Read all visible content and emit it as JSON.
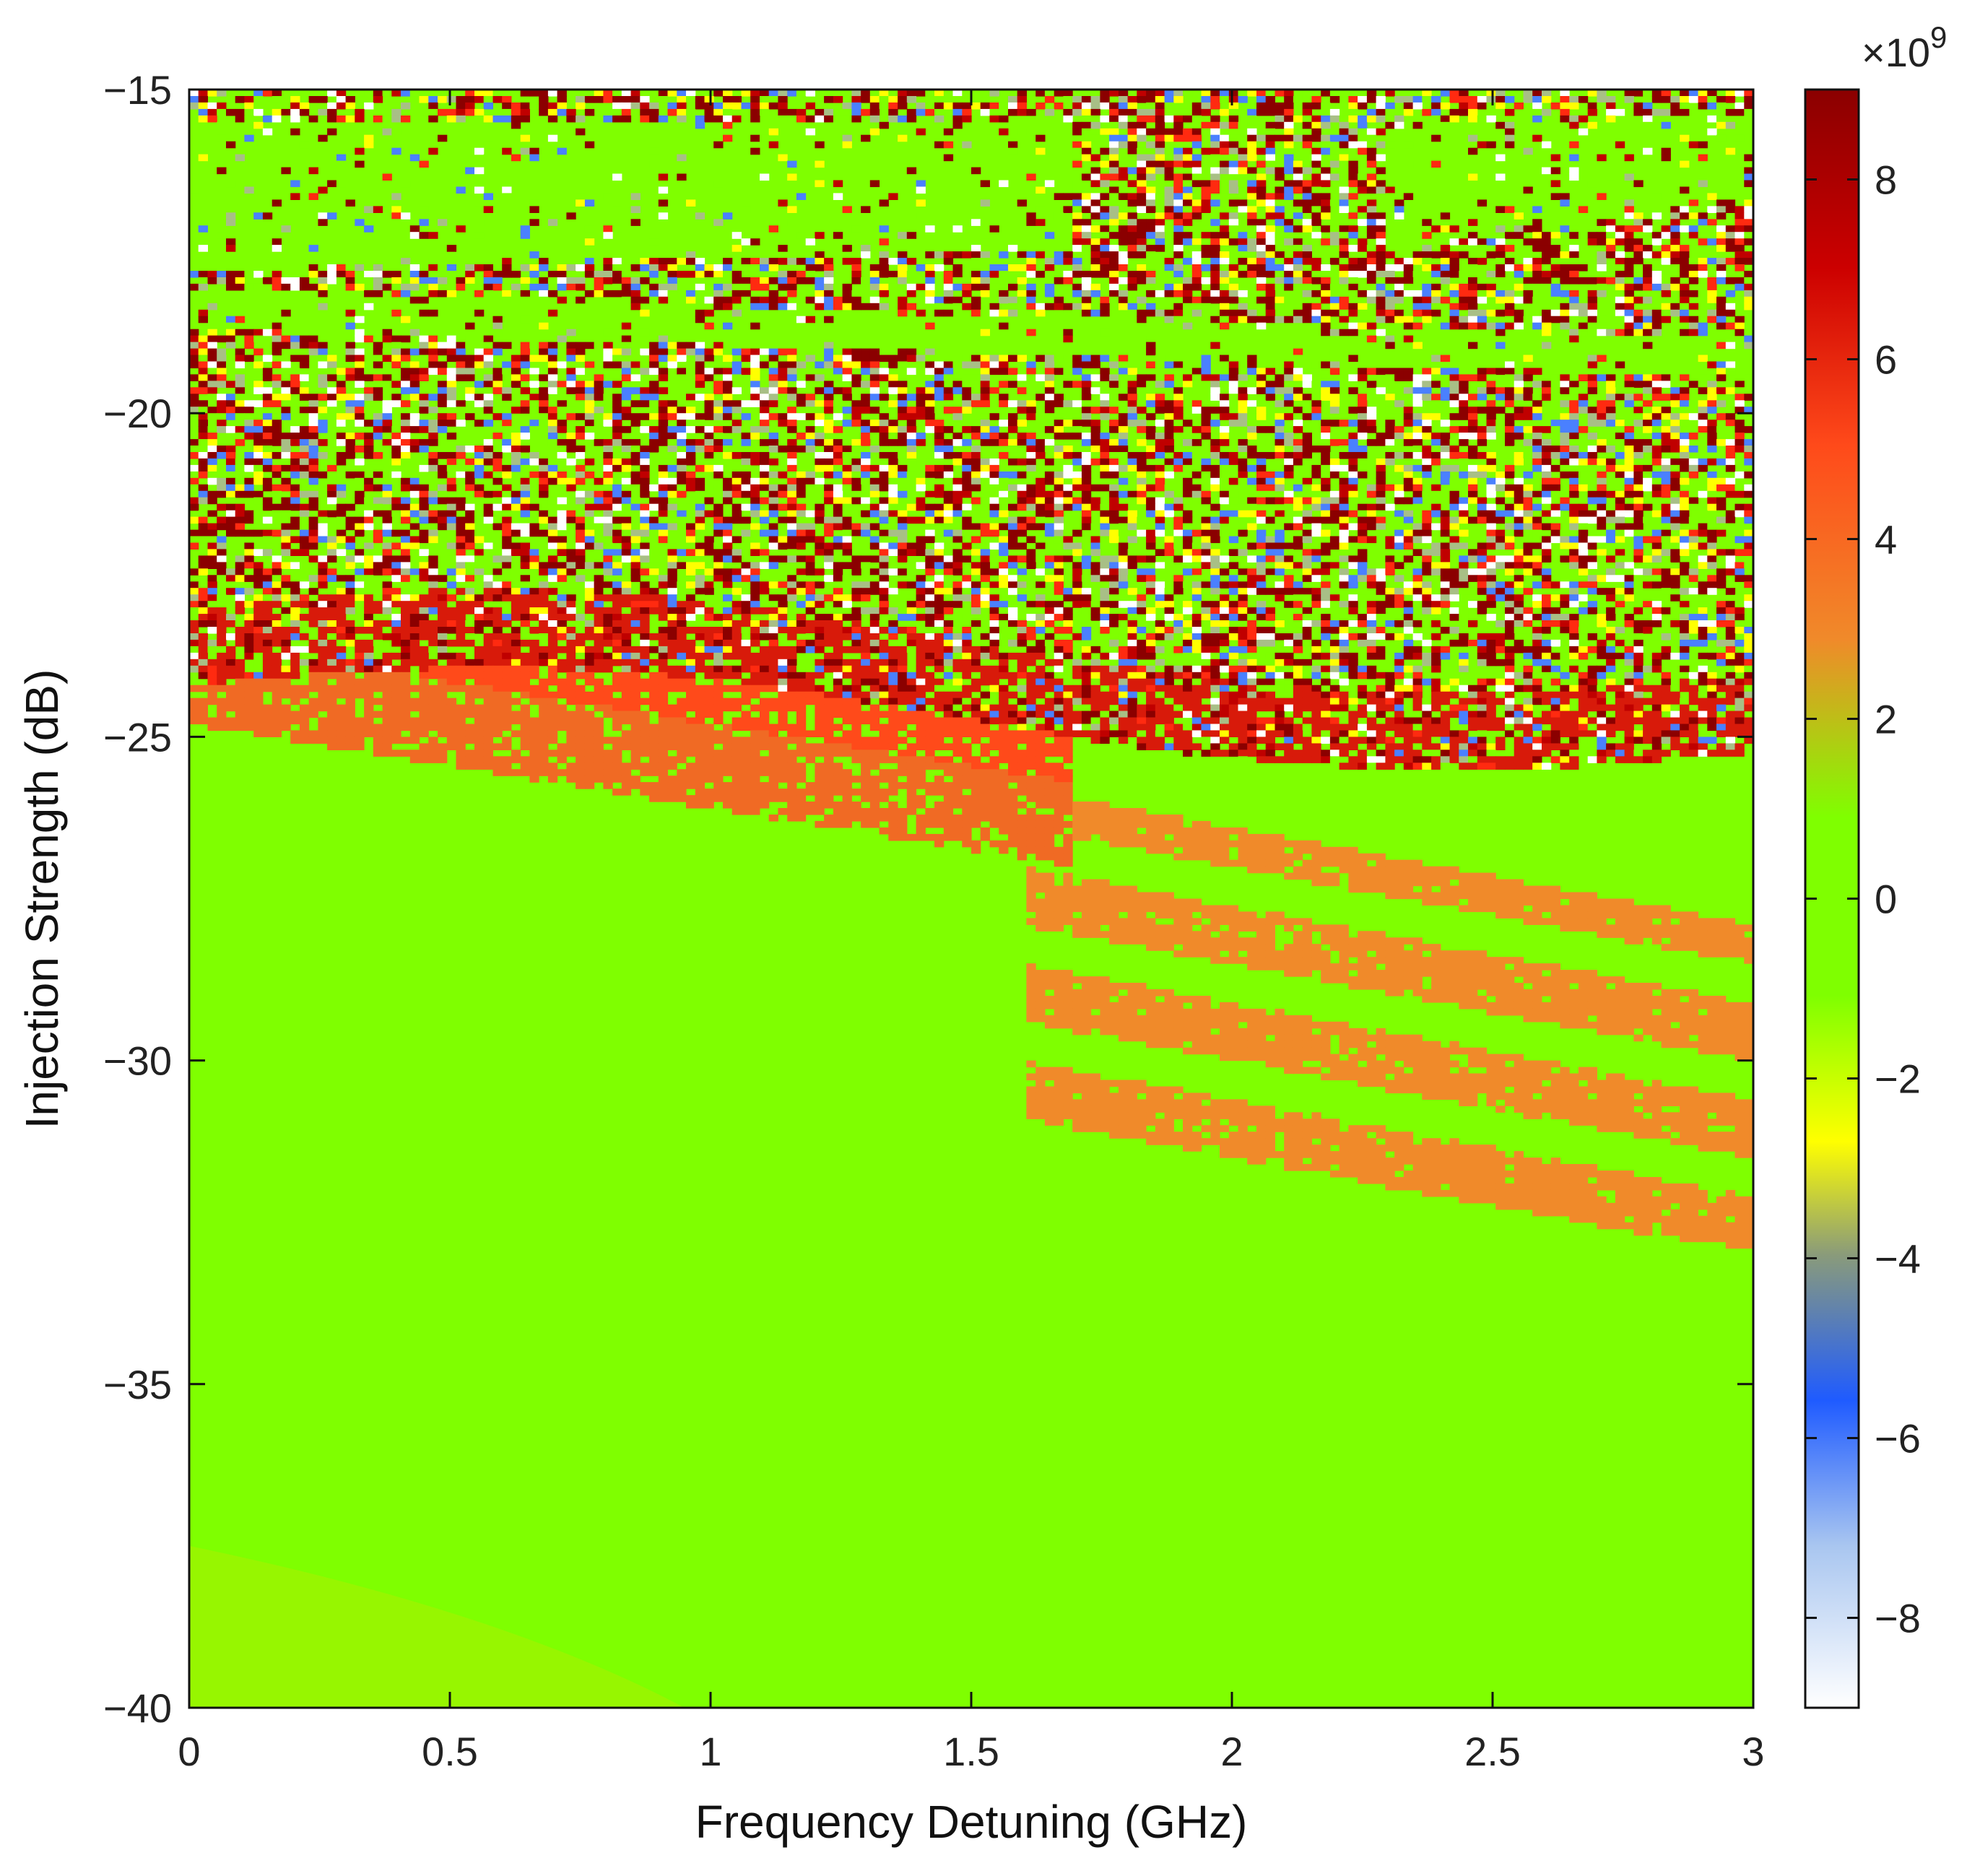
{
  "chart_data": {
    "type": "heatmap",
    "xlabel": "Frequency Detuning (GHz)",
    "ylabel": "Injection Strength (dB)",
    "xlim": [
      0,
      3
    ],
    "ylim": [
      -40,
      -15
    ],
    "x_ticks": [
      "0",
      "0.5",
      "1",
      "1.5",
      "2",
      "2.5",
      "3"
    ],
    "y_ticks": [
      "−15",
      "−20",
      "−25",
      "−30",
      "−35",
      "−40"
    ],
    "x_tick_values": [
      0,
      0.5,
      1,
      1.5,
      2,
      2.5,
      3
    ],
    "y_tick_values": [
      -15,
      -20,
      -25,
      -30,
      -35,
      -40
    ],
    "colorbar": {
      "clim": [
        -9,
        9
      ],
      "ticks": [
        "8",
        "6",
        "4",
        "2",
        "0",
        "−2",
        "−4",
        "−6",
        "−8"
      ],
      "tick_values": [
        8,
        6,
        4,
        2,
        0,
        -2,
        -4,
        -6,
        -8
      ],
      "exponent_prefix": "×10",
      "exponent_power": "9",
      "colormap": [
        "#ffffff",
        "#a9c6f0",
        "#1f5bff",
        "#8a9b7a",
        "#ffff00",
        "#7fff00",
        "#7fff00",
        "#f08a2a",
        "#ff4a1a",
        "#cc0000",
        "#8b0000"
      ]
    },
    "grid": false,
    "regions": {
      "background_value": 0,
      "chaotic_band_db": [
        -24,
        -15
      ],
      "red_tongue_db": [
        -31,
        -23.5
      ],
      "orange_spread_ghz": [
        1.6,
        3.0
      ]
    }
  }
}
